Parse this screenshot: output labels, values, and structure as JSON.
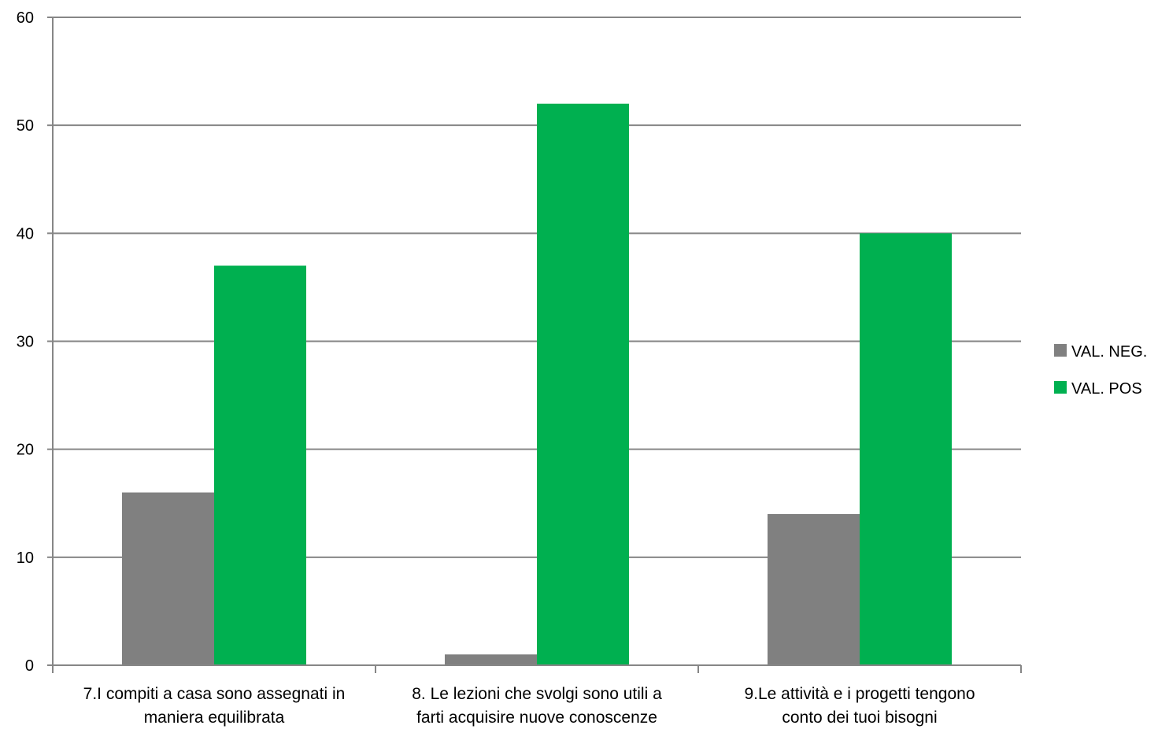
{
  "chart_data": {
    "type": "bar",
    "categories": [
      [
        "7.I compiti a casa sono assegnati in",
        "maniera equilibrata"
      ],
      [
        "8. Le lezioni che svolgi sono utili a",
        "farti acquisire nuove conoscenze"
      ],
      [
        "9.Le attività e i progetti tengono",
        "conto dei tuoi bisogni"
      ]
    ],
    "series": [
      {
        "name": "VAL. NEG.",
        "color": "#808080",
        "values": [
          16,
          1,
          14
        ]
      },
      {
        "name": "VAL. POS",
        "color": "#00b050",
        "values": [
          37,
          52,
          40
        ]
      }
    ],
    "y_ticks": [
      "0",
      "10",
      "20",
      "30",
      "40",
      "50",
      "60"
    ],
    "ylim": [
      0,
      60
    ],
    "grid": true,
    "legend_position": "right",
    "title": "",
    "xlabel": "",
    "ylabel": ""
  }
}
